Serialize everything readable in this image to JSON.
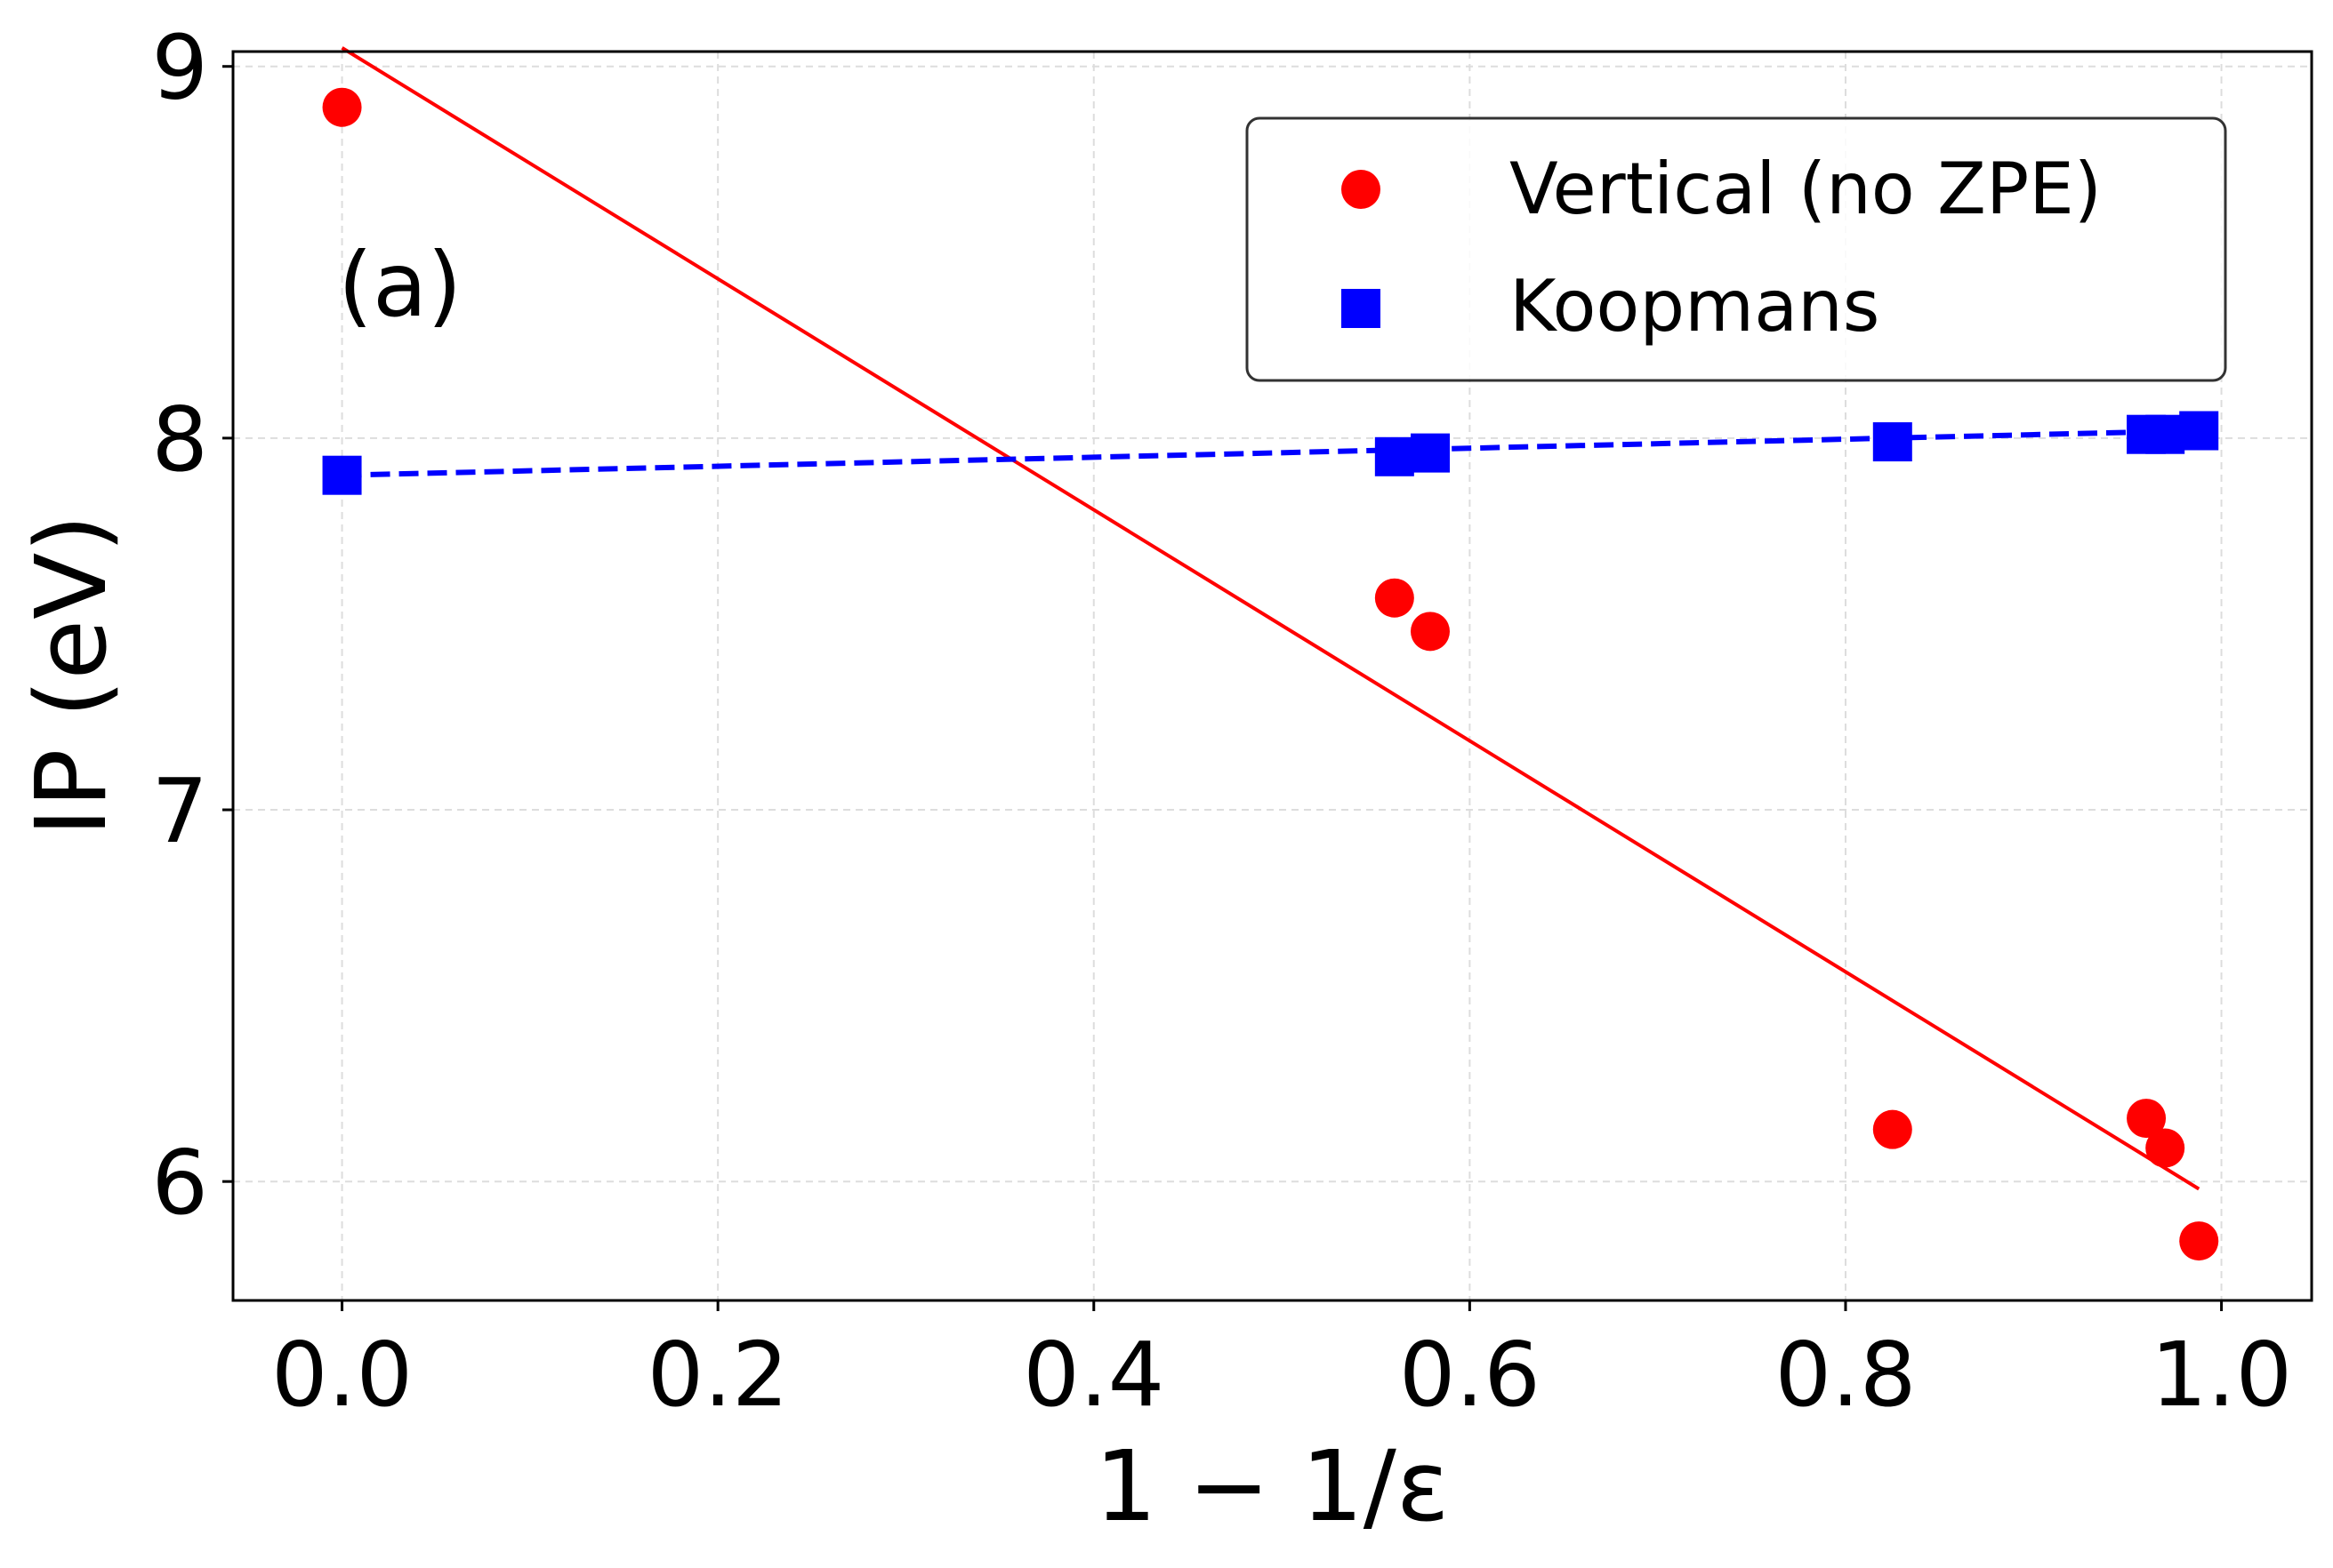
{
  "chart_data": {
    "type": "scatter",
    "xlabel": "1 − 1/ε",
    "ylabel": "IP (eV)",
    "panel_label": "(a)",
    "xlim": [
      -0.058,
      1.048
    ],
    "ylim": [
      5.68,
      9.04
    ],
    "xticks": [
      0.0,
      0.2,
      0.4,
      0.6,
      0.8,
      1.0
    ],
    "xtick_labels": [
      "0.0",
      "0.2",
      "0.4",
      "0.6",
      "0.8",
      "1.0"
    ],
    "yticks": [
      6,
      7,
      8,
      9
    ],
    "ytick_labels": [
      "6",
      "7",
      "8",
      "9"
    ],
    "grid": true,
    "legend_position": "top-right",
    "series": [
      {
        "name": "Vertical (no ZPE)",
        "marker": "circle",
        "color": "#ff0000",
        "x": [
          0.0,
          0.56,
          0.579,
          0.825,
          0.96,
          0.97,
          0.988
        ],
        "y": [
          8.89,
          7.57,
          7.48,
          6.14,
          6.17,
          6.09,
          5.84
        ],
        "fit_line": {
          "style": "solid",
          "x": [
            0.0,
            0.988
          ],
          "y": [
            9.05,
            5.98
          ]
        }
      },
      {
        "name": "Koopmans",
        "marker": "square",
        "color": "#0000ff",
        "x": [
          0.0,
          0.56,
          0.579,
          0.825,
          0.96,
          0.97,
          0.988
        ],
        "y": [
          7.9,
          7.95,
          7.96,
          7.99,
          8.01,
          8.01,
          8.02
        ],
        "fit_line": {
          "style": "dashed",
          "x": [
            0.0,
            0.988
          ],
          "y": [
            7.9,
            8.02
          ]
        }
      }
    ]
  }
}
